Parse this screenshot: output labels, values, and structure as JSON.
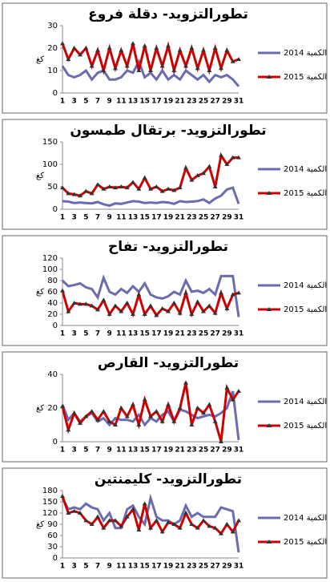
{
  "chart_data": [
    {
      "type": "line",
      "title": "تطورالتزويد- دقلة فروع",
      "y_label": "كغ",
      "ylim": [
        0,
        30
      ],
      "yticks": [
        0,
        10,
        20,
        30
      ],
      "categories": [
        1,
        null,
        3,
        null,
        5,
        null,
        7,
        null,
        9,
        null,
        11,
        null,
        13,
        null,
        15,
        null,
        17,
        null,
        19,
        null,
        21,
        null,
        23,
        null,
        25,
        null,
        27,
        null,
        29,
        null,
        31
      ],
      "series": [
        {
          "name": "الكمية 2014",
          "color": "#6b6bb0",
          "values": [
            12,
            8,
            7,
            8,
            10,
            6,
            9,
            10,
            6,
            6,
            7,
            10,
            9,
            14,
            7,
            9,
            6,
            10,
            6,
            8,
            6,
            10,
            8,
            6,
            8,
            5,
            8,
            7,
            8,
            6,
            3
          ]
        },
        {
          "name": "الكمية 2015",
          "color": "#cc0000",
          "marker": "triangle",
          "values": [
            22,
            15,
            20,
            17,
            20,
            12,
            19,
            10,
            20,
            11,
            19,
            12,
            22,
            10,
            21,
            10,
            20,
            12,
            21,
            10,
            19,
            12,
            20,
            11,
            19,
            10,
            20,
            11,
            19,
            14,
            15
          ]
        }
      ]
    },
    {
      "type": "line",
      "title": "تطورالتزويد- برتقال طمسون",
      "y_label": "كغ",
      "ylim": [
        0,
        150
      ],
      "yticks": [
        0,
        50,
        100,
        150
      ],
      "categories": [
        1,
        null,
        3,
        null,
        5,
        null,
        7,
        null,
        9,
        null,
        11,
        null,
        13,
        null,
        15,
        null,
        17,
        null,
        19,
        null,
        21,
        null,
        23,
        null,
        25,
        null,
        27,
        null,
        29,
        null,
        31
      ],
      "series": [
        {
          "name": "الكمية 2014",
          "color": "#6b6bb0",
          "values": [
            18,
            17,
            14,
            15,
            14,
            13,
            16,
            11,
            8,
            13,
            12,
            15,
            18,
            17,
            14,
            15,
            14,
            16,
            15,
            12,
            18,
            16,
            17,
            18,
            22,
            14,
            24,
            30,
            44,
            48,
            12
          ]
        },
        {
          "name": "الكمية 2015",
          "color": "#cc0000",
          "marker": "triangle",
          "values": [
            48,
            35,
            33,
            30,
            40,
            35,
            55,
            45,
            50,
            48,
            50,
            48,
            60,
            45,
            70,
            45,
            50,
            40,
            45,
            42,
            48,
            92,
            65,
            75,
            80,
            95,
            50,
            120,
            100,
            115,
            115
          ]
        }
      ]
    },
    {
      "type": "line",
      "title": "تطورالتزويد- تفاح",
      "y_label": "كغ",
      "ylim": [
        0,
        120
      ],
      "yticks": [
        0,
        20,
        40,
        60,
        80,
        100,
        120
      ],
      "categories": [
        1,
        null,
        3,
        null,
        5,
        null,
        7,
        null,
        9,
        null,
        11,
        null,
        13,
        null,
        15,
        null,
        17,
        null,
        19,
        null,
        21,
        null,
        23,
        null,
        25,
        null,
        27,
        null,
        29,
        null,
        31
      ],
      "series": [
        {
          "name": "الكمية 2014",
          "color": "#6b6bb0",
          "values": [
            80,
            70,
            72,
            75,
            68,
            65,
            50,
            85,
            60,
            55,
            65,
            58,
            70,
            60,
            75,
            55,
            50,
            48,
            52,
            60,
            55,
            80,
            60,
            62,
            58,
            65,
            55,
            88,
            88,
            88,
            15
          ]
        },
        {
          "name": "الكمية 2015",
          "color": "#cc0000",
          "marker": "triangle",
          "values": [
            62,
            25,
            40,
            38,
            38,
            35,
            28,
            45,
            20,
            35,
            25,
            40,
            20,
            55,
            20,
            35,
            18,
            30,
            25,
            40,
            22,
            58,
            20,
            42,
            25,
            35,
            22,
            58,
            30,
            55,
            58
          ]
        }
      ]
    },
    {
      "type": "line",
      "title": "تطورالتزويد- القارص",
      "y_label": "كغ",
      "ylim": [
        0,
        40
      ],
      "yticks": [
        0,
        20,
        40
      ],
      "categories": [
        1,
        null,
        3,
        null,
        5,
        null,
        7,
        null,
        9,
        null,
        11,
        null,
        13,
        null,
        15,
        null,
        17,
        null,
        19,
        null,
        21,
        null,
        23,
        null,
        25,
        null,
        27,
        null,
        29,
        null,
        31
      ],
      "series": [
        {
          "name": "الكمية 2014",
          "color": "#6b6bb0",
          "values": [
            22,
            13,
            17,
            12,
            15,
            17,
            12,
            14,
            10,
            14,
            13,
            13,
            12,
            16,
            10,
            14,
            12,
            16,
            18,
            12,
            19,
            18,
            16,
            14,
            15,
            16,
            15,
            17,
            20,
            30,
            1
          ]
        },
        {
          "name": "الكمية 2015",
          "color": "#cc0000",
          "marker": "triangle",
          "values": [
            21,
            7,
            17,
            11,
            15,
            18,
            13,
            18,
            12,
            10,
            20,
            15,
            22,
            10,
            25,
            15,
            18,
            12,
            22,
            12,
            20,
            35,
            10,
            20,
            17,
            22,
            12,
            0,
            32,
            25,
            30
          ]
        }
      ]
    },
    {
      "type": "line",
      "title": "تطورالتزويد- كليمنتين",
      "y_label": "كغ",
      "ylim": [
        0,
        180
      ],
      "yticks": [
        0,
        30,
        60,
        90,
        120,
        150,
        180
      ],
      "categories": [
        1,
        null,
        3,
        null,
        5,
        null,
        7,
        null,
        9,
        null,
        11,
        null,
        13,
        null,
        15,
        null,
        17,
        null,
        19,
        null,
        21,
        null,
        23,
        null,
        25,
        null,
        27,
        null,
        29,
        null,
        31
      ],
      "series": [
        {
          "name": "الكمية 2014",
          "color": "#6b6bb0",
          "values": [
            160,
            130,
            135,
            130,
            145,
            135,
            130,
            100,
            120,
            80,
            80,
            130,
            140,
            110,
            90,
            160,
            110,
            100,
            100,
            90,
            100,
            140,
            110,
            120,
            110,
            110,
            110,
            135,
            130,
            125,
            15
          ]
        },
        {
          "name": "الكمية 2015",
          "color": "#cc0000",
          "marker": "triangle",
          "values": [
            165,
            120,
            125,
            120,
            100,
            90,
            110,
            80,
            100,
            100,
            85,
            110,
            130,
            75,
            145,
            80,
            100,
            70,
            95,
            90,
            80,
            120,
            90,
            80,
            100,
            85,
            80,
            65,
            90,
            70,
            100
          ]
        }
      ]
    }
  ]
}
